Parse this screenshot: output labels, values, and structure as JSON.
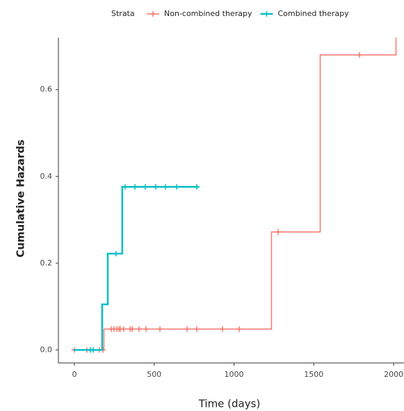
{
  "chart_data": {
    "type": "step",
    "legend_title": "Strata",
    "xlabel": "Time (days)",
    "ylabel": "Cumulative Hazards",
    "xlim": [
      -100,
      2065
    ],
    "ylim": [
      -0.03,
      0.72
    ],
    "xticks": [
      0,
      500,
      1000,
      1500,
      2000
    ],
    "yticks": [
      {
        "value": 0,
        "label": "0.0"
      },
      0.2,
      0.4,
      0.6
    ],
    "series": [
      {
        "name": "Non-combined therapy",
        "color": "#f8766d",
        "x": [
          0,
          185,
          1235,
          1540,
          2015
        ],
        "values": [
          0,
          0.048,
          0.272,
          0.68,
          0.72
        ],
        "censored": {
          "x": [
            0,
            78,
            157,
            179,
            231,
            248,
            266,
            279,
            288,
            309,
            349,
            362,
            405,
            449,
            536,
            706,
            767,
            928,
            1033,
            1277,
            1786
          ],
          "values": [
            0,
            0,
            0,
            0,
            0.048,
            0.048,
            0.048,
            0.048,
            0.048,
            0.048,
            0.048,
            0.048,
            0.048,
            0.048,
            0.048,
            0.048,
            0.048,
            0.048,
            0.048,
            0.272,
            0.68
          ]
        }
      },
      {
        "name": "Combined therapy",
        "color": "#00bfc4",
        "x": [
          0,
          174,
          209,
          300,
          776
        ],
        "values": [
          0,
          0.105,
          0.222,
          0.376,
          0.376
        ],
        "censored": {
          "x": [
            100,
            118,
            261,
            318,
            379,
            444,
            510,
            571,
            641,
            767
          ],
          "values": [
            0,
            0,
            0.222,
            0.376,
            0.376,
            0.376,
            0.376,
            0.376,
            0.376,
            0.376
          ]
        }
      }
    ]
  }
}
